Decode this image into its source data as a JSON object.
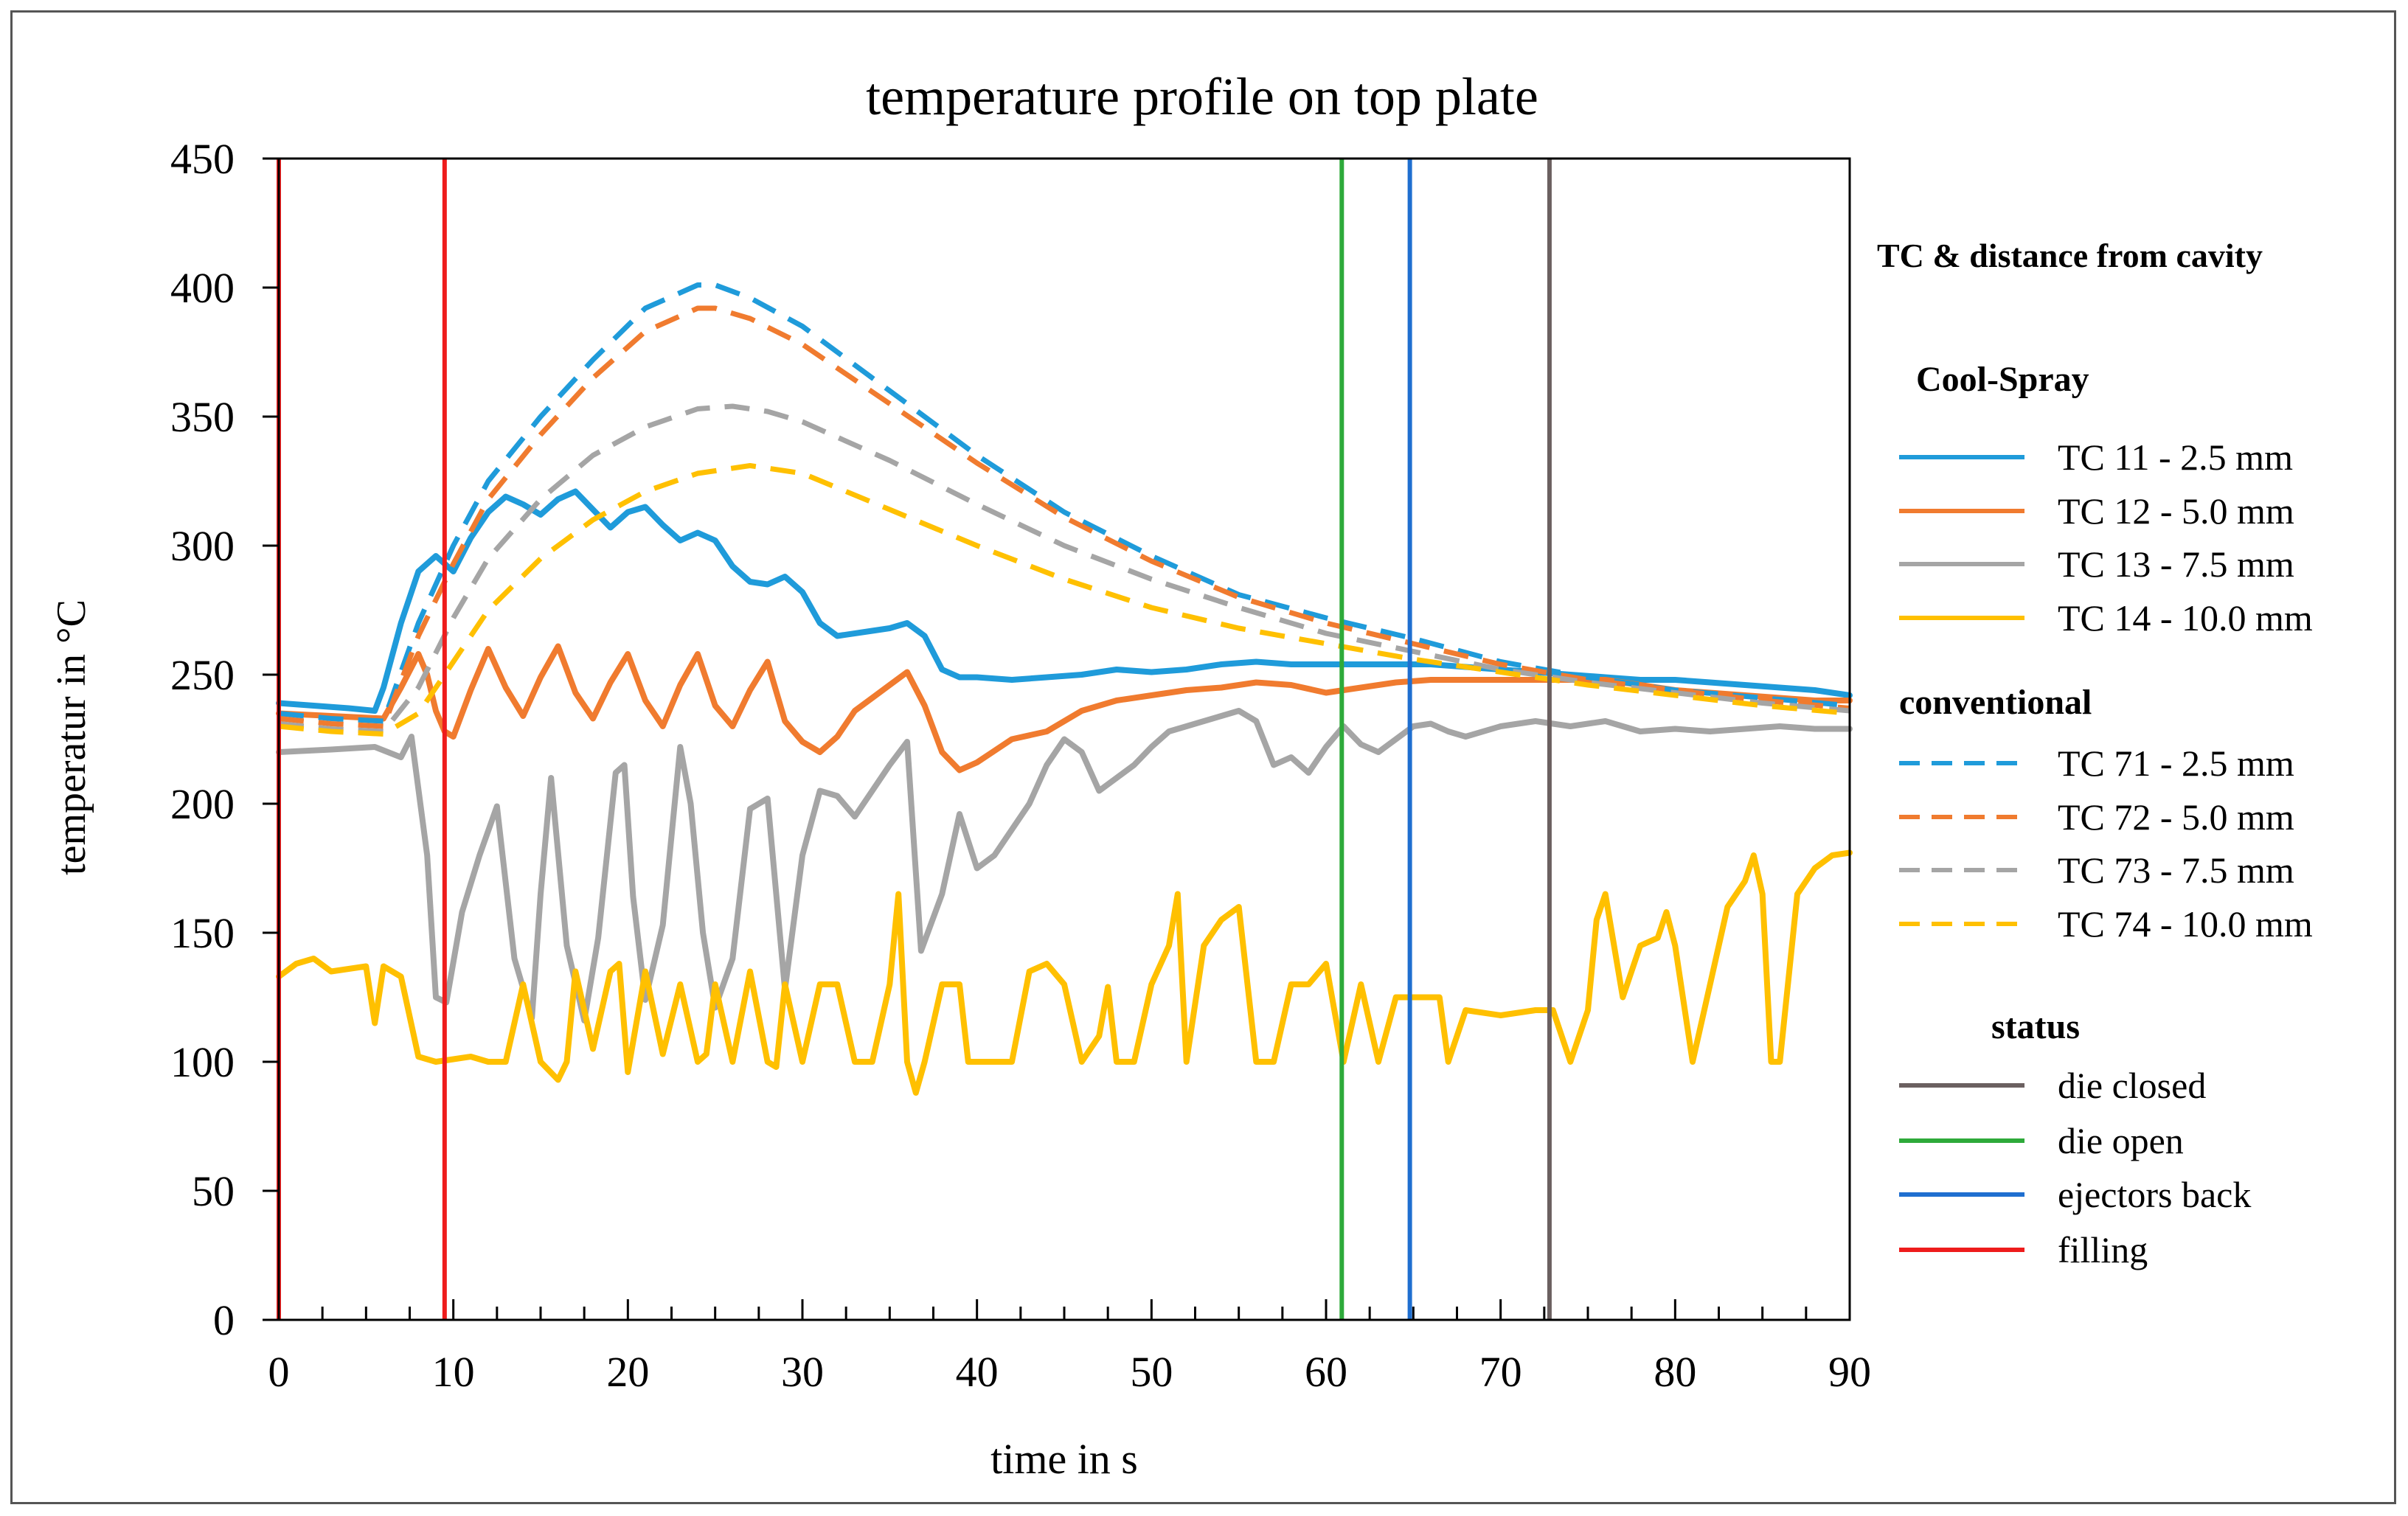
{
  "chart_data": {
    "type": "line",
    "title": "temperature profile on top plate",
    "xlabel": "time in s",
    "ylabel": "temperatur in °C",
    "xlim": [
      0,
      90
    ],
    "ylim": [
      0,
      450
    ],
    "x_ticks": [
      0,
      10,
      20,
      30,
      40,
      50,
      60,
      70,
      80,
      90
    ],
    "y_ticks": [
      0,
      50,
      100,
      150,
      200,
      250,
      300,
      350,
      400,
      450
    ],
    "grid": false,
    "legend_position": "right",
    "legend_title": "TC & distance from cavity",
    "groups": [
      {
        "title": "Cool-Spray",
        "series_indices": [
          0,
          1,
          2,
          3
        ]
      },
      {
        "title": "conventional",
        "series_indices": [
          4,
          5,
          6,
          7
        ]
      },
      {
        "title": "status",
        "marker_indices": [
          0,
          1,
          2,
          3
        ]
      }
    ],
    "series": [
      {
        "name": "TC 11 - 2.5 mm",
        "color": "#1F9BDA",
        "dash": false,
        "x": [
          0,
          2,
          4,
          5.5,
          6,
          7,
          8,
          9,
          10,
          11,
          12,
          13,
          14,
          15,
          16,
          17,
          18,
          19,
          20,
          21,
          22,
          23,
          24,
          25,
          26,
          27,
          28,
          29,
          30,
          31,
          32,
          34,
          35,
          36,
          37,
          38,
          39,
          40,
          42,
          44,
          46,
          48,
          50,
          52,
          54,
          56,
          58,
          60,
          62,
          64,
          66,
          68,
          70,
          72,
          74,
          76,
          78,
          80,
          82,
          84,
          86,
          88,
          90
        ],
        "y": [
          239,
          238,
          237,
          236,
          245,
          270,
          290,
          296,
          290,
          303,
          313,
          319,
          316,
          312,
          318,
          321,
          314,
          307,
          313,
          315,
          308,
          302,
          305,
          302,
          292,
          286,
          285,
          288,
          282,
          270,
          265,
          267,
          268,
          270,
          265,
          252,
          249,
          249,
          248,
          249,
          250,
          252,
          251,
          252,
          254,
          255,
          254,
          254,
          254,
          254,
          254,
          253,
          252,
          251,
          250,
          249,
          248,
          248,
          247,
          246,
          245,
          244,
          242
        ]
      },
      {
        "name": "TC 12 - 5.0 mm",
        "color": "#F07B2F",
        "dash": false,
        "x": [
          0,
          3,
          6,
          7,
          8,
          8.5,
          9,
          9.5,
          10,
          11,
          12,
          13,
          14,
          15,
          16,
          17,
          18,
          19,
          20,
          21,
          22,
          23,
          24,
          25,
          26,
          27,
          28,
          29,
          30,
          31,
          32,
          33,
          34,
          35,
          36,
          37,
          38,
          39,
          40,
          42,
          44,
          46,
          48,
          50,
          52,
          54,
          56,
          58,
          60,
          62,
          64,
          66,
          68,
          70,
          72,
          74,
          76,
          78,
          80,
          82,
          84,
          86,
          88,
          90
        ],
        "y": [
          235,
          234,
          233,
          245,
          258,
          250,
          236,
          228,
          226,
          244,
          260,
          245,
          234,
          249,
          261,
          243,
          233,
          247,
          258,
          240,
          230,
          246,
          258,
          238,
          230,
          244,
          255,
          232,
          224,
          220,
          226,
          236,
          241,
          246,
          251,
          238,
          220,
          213,
          216,
          225,
          228,
          236,
          240,
          242,
          244,
          245,
          247,
          246,
          243,
          245,
          247,
          248,
          248,
          248,
          248,
          248,
          248,
          246,
          244,
          243,
          242,
          241,
          240,
          240
        ]
      },
      {
        "name": "TC 13 - 7.5 mm",
        "color": "#A5A5A5",
        "dash": false,
        "x": [
          0,
          3,
          5.5,
          7,
          7.6,
          8.5,
          9,
          9.6,
          10.5,
          11.5,
          12.5,
          13.5,
          14.5,
          15,
          15.6,
          16.5,
          17.5,
          18.3,
          19.3,
          19.8,
          20.3,
          21,
          22,
          23,
          23.6,
          24.3,
          25,
          26,
          27,
          28,
          29,
          30,
          31,
          32,
          33,
          34,
          35,
          36,
          36.8,
          38,
          39,
          40,
          41,
          42,
          43,
          44,
          45,
          46,
          47,
          48,
          49,
          50,
          51,
          52,
          53,
          54,
          55,
          56,
          57,
          58,
          59,
          60,
          61,
          62,
          63,
          64,
          65,
          66,
          67,
          68,
          70,
          72,
          74,
          76,
          78,
          80,
          82,
          84,
          86,
          88,
          90
        ],
        "y": [
          220,
          221,
          222,
          218,
          226,
          180,
          125,
          123,
          158,
          180,
          199,
          140,
          117,
          165,
          210,
          145,
          116,
          148,
          212,
          215,
          164,
          124,
          153,
          222,
          200,
          150,
          121,
          140,
          198,
          202,
          128,
          180,
          205,
          203,
          195,
          205,
          215,
          224,
          143,
          165,
          196,
          175,
          180,
          190,
          200,
          215,
          225,
          220,
          205,
          210,
          215,
          222,
          228,
          230,
          232,
          234,
          236,
          232,
          215,
          218,
          212,
          222,
          230,
          223,
          220,
          225,
          230,
          231,
          228,
          226,
          230,
          232,
          230,
          232,
          228,
          229,
          228,
          229,
          230,
          229,
          229
        ]
      },
      {
        "name": "TC 14 - 10.0 mm",
        "color": "#FFC000",
        "dash": false,
        "x": [
          0,
          1,
          2,
          3,
          4,
          5,
          5.5,
          6,
          7,
          8,
          9,
          10,
          11,
          12,
          13,
          14,
          15,
          16,
          16.5,
          17,
          18,
          19,
          19.5,
          20,
          21,
          22,
          23,
          24,
          24.5,
          25,
          26,
          27,
          28,
          28.5,
          29,
          30,
          31,
          32,
          33,
          34,
          35,
          35.5,
          36,
          36.5,
          37,
          38,
          39,
          39.5,
          40,
          41,
          42,
          43,
          44,
          45,
          46,
          47,
          47.5,
          48,
          49,
          50,
          51,
          51.5,
          52,
          53,
          54,
          55,
          55.5,
          56,
          57,
          58,
          59,
          60,
          61,
          62,
          63,
          64,
          65,
          66,
          66.5,
          67,
          68,
          70,
          72,
          73,
          74,
          75,
          75.5,
          76,
          77,
          78,
          79,
          79.5,
          80,
          81,
          82,
          83,
          84,
          84.5,
          85,
          85.5,
          86,
          87,
          88,
          89,
          90
        ],
        "y": [
          133,
          138,
          140,
          135,
          136,
          137,
          115,
          137,
          133,
          102,
          100,
          101,
          102,
          100,
          100,
          130,
          100,
          93,
          100,
          135,
          105,
          135,
          138,
          96,
          135,
          103,
          130,
          100,
          103,
          130,
          100,
          135,
          100,
          98,
          130,
          100,
          130,
          130,
          100,
          100,
          130,
          165,
          100,
          88,
          100,
          130,
          130,
          100,
          100,
          100,
          100,
          135,
          138,
          130,
          100,
          110,
          129,
          100,
          100,
          130,
          145,
          165,
          100,
          145,
          155,
          160,
          130,
          100,
          100,
          130,
          130,
          138,
          100,
          130,
          100,
          125,
          125,
          125,
          125,
          100,
          120,
          118,
          120,
          120,
          100,
          120,
          155,
          165,
          125,
          145,
          148,
          158,
          145,
          100,
          130,
          160,
          170,
          180,
          165,
          100,
          100,
          165,
          175,
          180,
          181
        ]
      },
      {
        "name": "TC 71 - 2.5 mm",
        "color": "#1F9BDA",
        "dash": true,
        "x": [
          0,
          3,
          6,
          8,
          10,
          12,
          15,
          18,
          21,
          24,
          25,
          27,
          30,
          35,
          40,
          45,
          50,
          55,
          60,
          65,
          70,
          75,
          80,
          85,
          90
        ],
        "y": [
          235,
          233,
          232,
          270,
          300,
          325,
          350,
          372,
          392,
          401,
          401,
          396,
          385,
          360,
          335,
          313,
          296,
          281,
          272,
          264,
          255,
          249,
          244,
          241,
          238
        ]
      },
      {
        "name": "TC 72 - 5.0 mm",
        "color": "#F07B2F",
        "dash": true,
        "x": [
          0,
          3,
          6,
          8,
          10,
          12,
          15,
          18,
          21,
          24,
          25,
          27,
          30,
          35,
          40,
          45,
          50,
          55,
          60,
          65,
          70,
          75,
          80,
          85,
          90
        ],
        "y": [
          233,
          231,
          230,
          265,
          293,
          318,
          343,
          365,
          383,
          392,
          392,
          388,
          378,
          355,
          332,
          311,
          294,
          280,
          270,
          262,
          254,
          248,
          244,
          240,
          237
        ]
      },
      {
        "name": "TC 73 - 7.5 mm",
        "color": "#A5A5A5",
        "dash": true,
        "x": [
          0,
          3,
          6,
          8,
          10,
          12,
          15,
          18,
          21,
          24,
          26,
          28,
          30,
          35,
          40,
          45,
          50,
          55,
          60,
          65,
          70,
          75,
          80,
          85,
          90
        ],
        "y": [
          231,
          229,
          228,
          245,
          272,
          295,
          318,
          335,
          346,
          353,
          354,
          352,
          348,
          333,
          316,
          300,
          287,
          276,
          266,
          259,
          252,
          247,
          243,
          239,
          236
        ]
      },
      {
        "name": "TC 74 - 10.0 mm",
        "color": "#FFC000",
        "dash": true,
        "x": [
          0,
          3,
          6,
          8,
          10,
          12,
          15,
          18,
          21,
          24,
          27,
          30,
          35,
          40,
          45,
          50,
          55,
          60,
          65,
          70,
          75,
          80,
          85,
          90
        ],
        "y": [
          230,
          228,
          227,
          235,
          255,
          275,
          295,
          310,
          321,
          328,
          331,
          328,
          314,
          300,
          287,
          276,
          268,
          262,
          256,
          251,
          246,
          242,
          238,
          235
        ]
      }
    ],
    "markers": [
      {
        "name": "die closed",
        "color": "#6B6060",
        "x": 72.8
      },
      {
        "name": "die open",
        "color": "#2EAA3A",
        "x": 60.9
      },
      {
        "name": "ejectors back",
        "color": "#1F6FD0",
        "x": 64.8
      },
      {
        "name": "filling",
        "color": "#EE1C1C",
        "x": [
          0,
          9.5
        ]
      }
    ]
  }
}
